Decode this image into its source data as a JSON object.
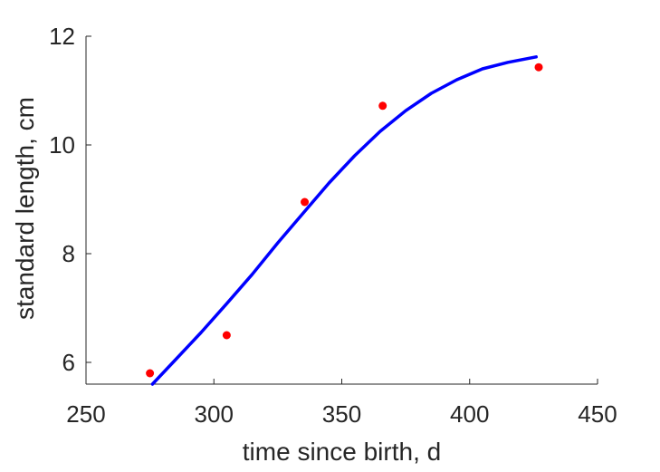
{
  "chart_data": {
    "type": "scatter",
    "xlabel": "time since birth, d",
    "ylabel": "standard length, cm",
    "xlim": [
      250,
      450
    ],
    "ylim": [
      5.6,
      12
    ],
    "xticks": [
      250,
      300,
      350,
      400,
      450
    ],
    "yticks": [
      6,
      8,
      10,
      12
    ],
    "grid": false,
    "series": [
      {
        "kind": "points",
        "color": "#ff0000",
        "x": [
          275,
          305,
          335.5,
          366,
          427
        ],
        "y": [
          5.8,
          6.5,
          8.95,
          10.72,
          11.43
        ]
      },
      {
        "kind": "line",
        "color": "#0000ff",
        "x": [
          276,
          285,
          295,
          305,
          315,
          325,
          335,
          345,
          355,
          365,
          375,
          385,
          395,
          405,
          415,
          426
        ],
        "y": [
          5.6,
          6.05,
          6.55,
          7.08,
          7.62,
          8.2,
          8.75,
          9.3,
          9.8,
          10.25,
          10.63,
          10.95,
          11.2,
          11.4,
          11.52,
          11.62
        ]
      }
    ]
  }
}
